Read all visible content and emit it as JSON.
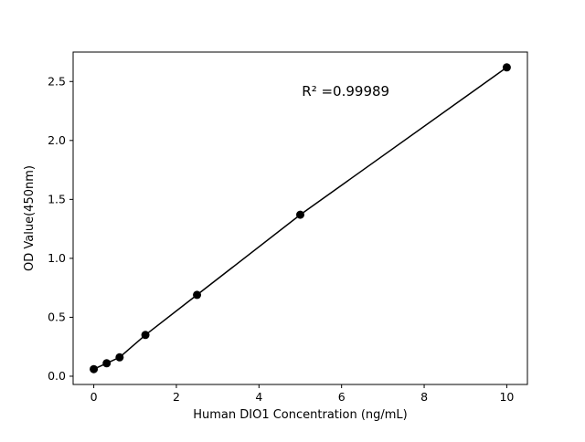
{
  "figure": {
    "background": "#ffffff"
  },
  "chart_data": {
    "type": "scatter",
    "title": "",
    "xlabel": "Human DIO1 Concentration (ng/mL)",
    "ylabel": "OD Value(450nm)",
    "x": [
      0,
      0.3125,
      0.625,
      1.25,
      2.5,
      5,
      10
    ],
    "y": [
      0.06,
      0.11,
      0.16,
      0.35,
      0.69,
      1.37,
      2.62
    ],
    "xticks": [
      0,
      2,
      4,
      6,
      8,
      10
    ],
    "yticks": [
      0.0,
      0.5,
      1.0,
      1.5,
      2.0,
      2.5
    ],
    "xlim": [
      -0.5,
      10.5
    ],
    "ylim": [
      -0.07,
      2.75
    ],
    "grid": false,
    "legend_position": "none",
    "marker_color": "#000000",
    "line_color": "#000000",
    "annotation": {
      "text": "R² =0.99989",
      "x": 6.1,
      "y": 2.38
    }
  }
}
